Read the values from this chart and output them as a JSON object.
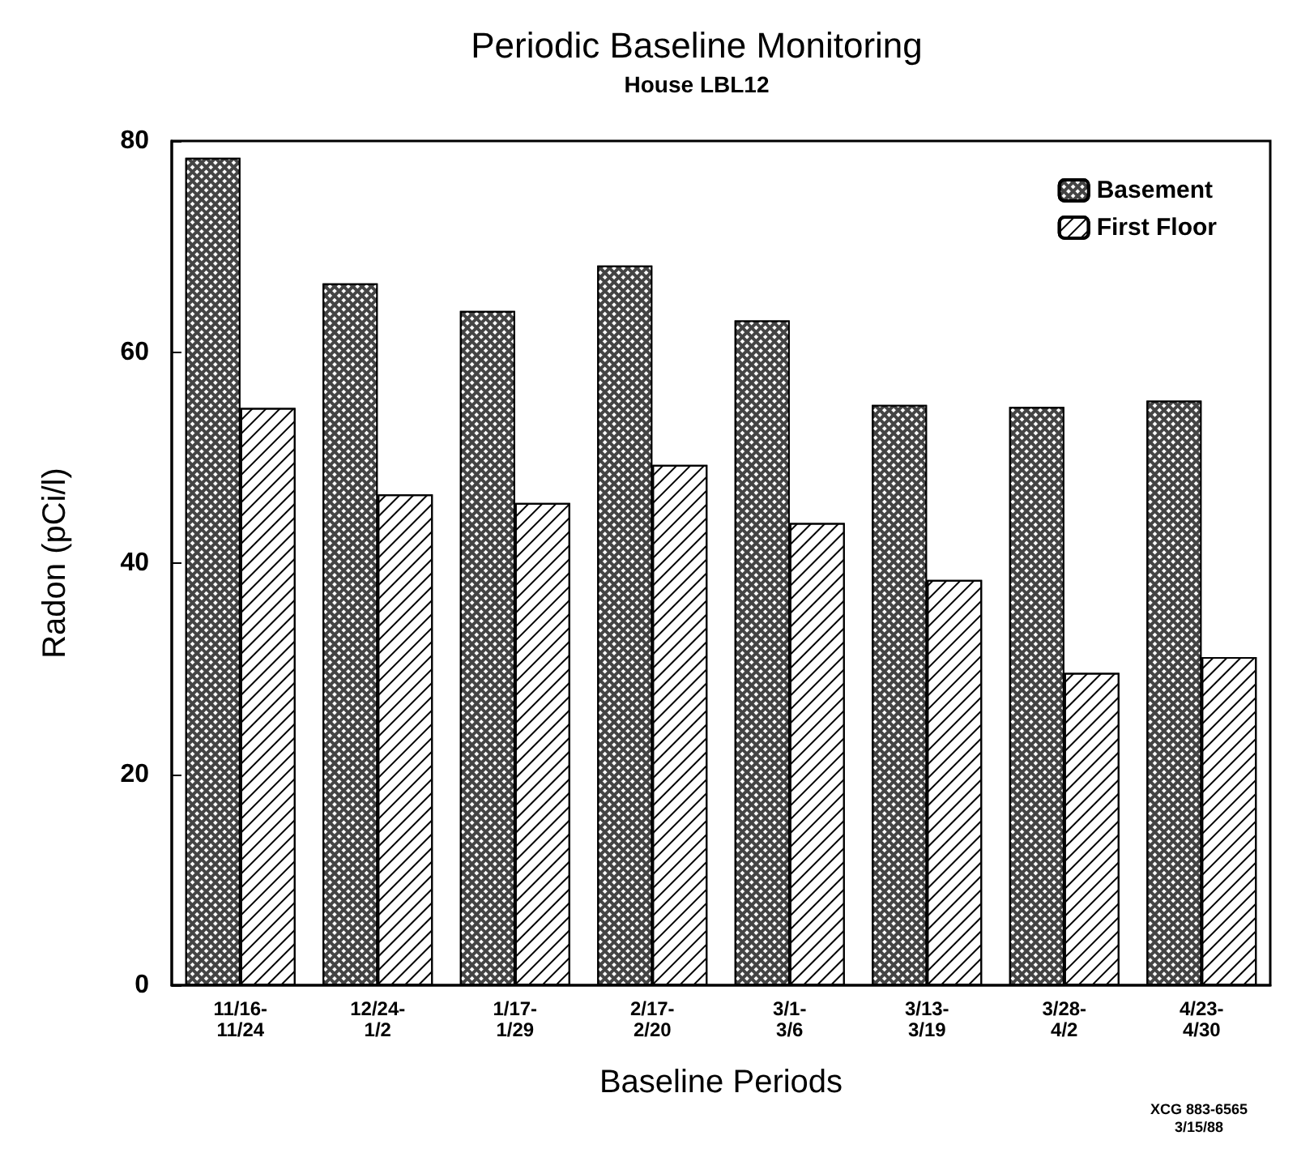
{
  "chart_data": {
    "type": "bar",
    "title": "Periodic Baseline Monitoring",
    "subtitle": "House LBL12",
    "xlabel": "Baseline Periods",
    "ylabel": "Radon (pCi/l)",
    "categories": [
      "11/16-\n11/24",
      "12/24-\n1/2",
      "1/17-\n1/29",
      "2/17-\n2/20",
      "3/1-\n3/6",
      "3/13-\n3/19",
      "3/28-\n4/2",
      "4/23-\n4/30"
    ],
    "series": [
      {
        "name": "Basement",
        "color": "#444444",
        "values": [
          78.4,
          66.5,
          63.9,
          68.2,
          63.0,
          55.0,
          54.8,
          55.4
        ]
      },
      {
        "name": "First Floor",
        "color": "#ffffff",
        "values": [
          54.7,
          46.5,
          45.7,
          49.3,
          43.8,
          38.4,
          29.6,
          31.1
        ]
      }
    ],
    "ylim": [
      0,
      80
    ],
    "yticks": [
      0,
      20,
      40,
      60,
      80
    ],
    "grid": false,
    "legend": "top right",
    "annotations": [
      "XCG 883-6565\n3/15/88"
    ]
  }
}
